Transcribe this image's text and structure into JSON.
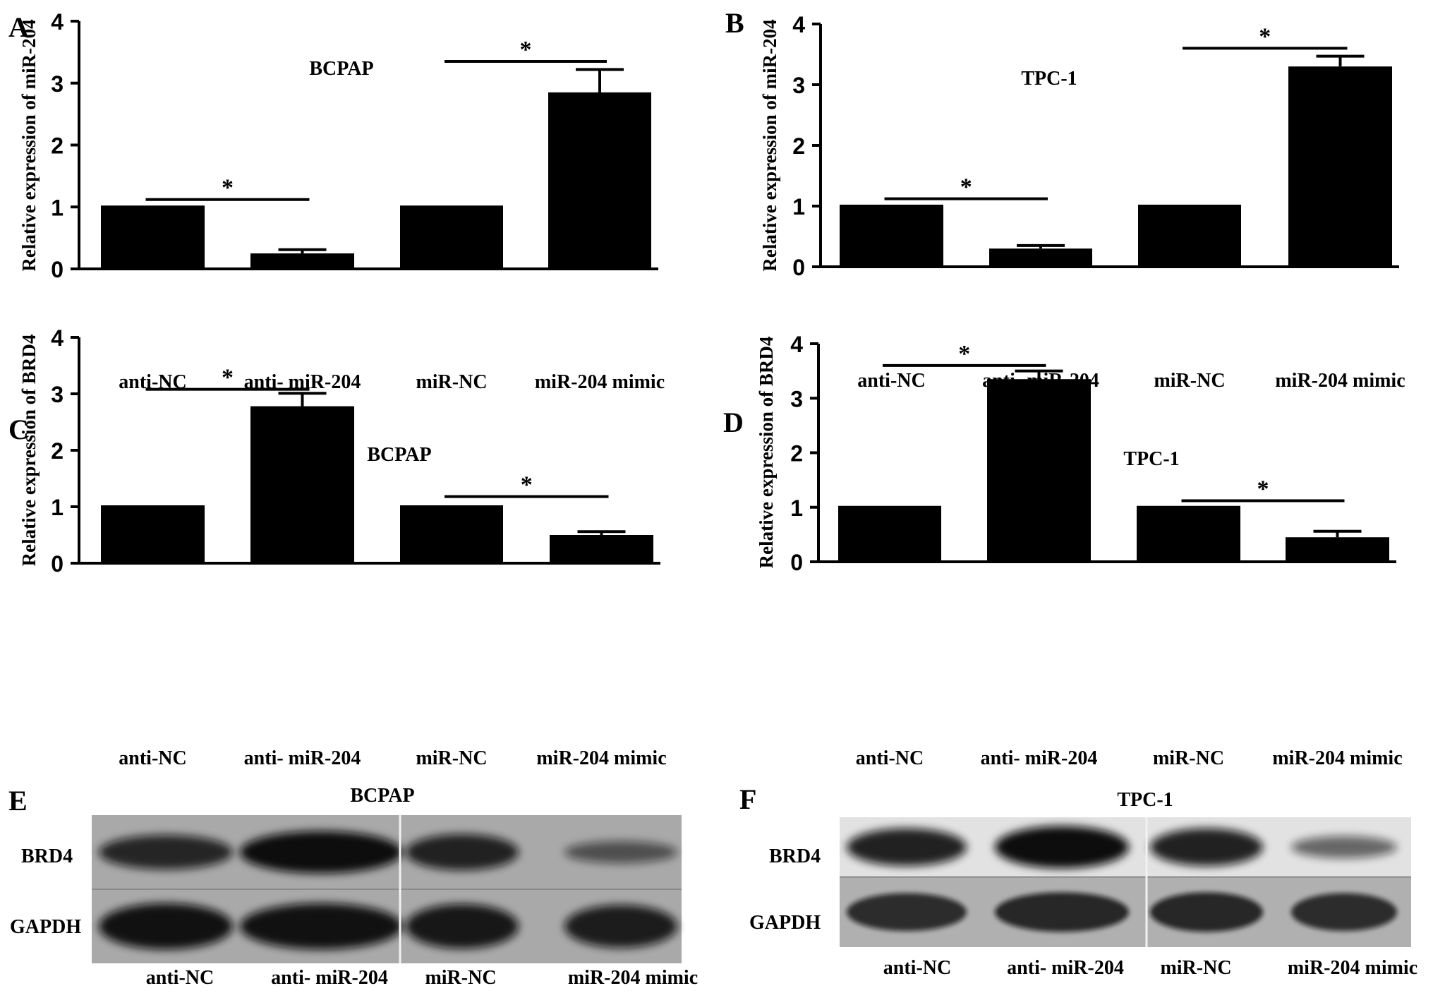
{
  "chart_data": [
    {
      "type": "bar",
      "panel": "A",
      "title": "BCPAP",
      "ylabel": "Relative expression of  miR-204",
      "categories": [
        "anti-NC",
        "anti- miR-204",
        "miR-NC",
        "miR-204 mimic"
      ],
      "values": [
        1.0,
        0.25,
        1.0,
        2.85
      ],
      "errors": [
        0,
        0.06,
        0,
        0.37
      ],
      "ylim": [
        0,
        4
      ],
      "yticks": [
        "0",
        "1",
        "2",
        "3",
        "4"
      ],
      "significance": [
        {
          "from": 0,
          "to": 1,
          "y": 1.12,
          "label": "*"
        },
        {
          "from": 2,
          "to": 3,
          "y": 3.35,
          "label": "*"
        }
      ]
    },
    {
      "type": "bar",
      "panel": "B",
      "title": "TPC-1",
      "ylabel": "Relative expression of  miR-204",
      "categories": [
        "anti-NC",
        "anti- miR-204",
        "miR-NC",
        "miR-204 mimic"
      ],
      "values": [
        1.0,
        0.3,
        1.0,
        3.3
      ],
      "errors": [
        0,
        0.05,
        0,
        0.17
      ],
      "ylim": [
        0,
        4
      ],
      "yticks": [
        "0",
        "1",
        "2",
        "3",
        "4"
      ],
      "significance": [
        {
          "from": 0,
          "to": 1,
          "y": 1.12,
          "label": "*"
        },
        {
          "from": 2,
          "to": 3,
          "y": 3.6,
          "label": "*"
        }
      ]
    },
    {
      "type": "bar",
      "panel": "C",
      "title": "BCPAP",
      "ylabel": "Relative expression of BRD4",
      "categories": [
        "anti-NC",
        "anti- miR-204",
        "miR-NC",
        "miR-204 mimic"
      ],
      "values": [
        1.0,
        2.78,
        1.0,
        0.5
      ],
      "errors": [
        0,
        0.23,
        0,
        0.06
      ],
      "ylim": [
        0,
        4
      ],
      "yticks": [
        "0",
        "1",
        "2",
        "3",
        "4"
      ],
      "significance": [
        {
          "from": 0,
          "to": 1,
          "y": 3.08,
          "label": "*"
        },
        {
          "from": 2,
          "to": 3,
          "y": 1.18,
          "label": "*"
        }
      ]
    },
    {
      "type": "bar",
      "panel": "D",
      "title": "TPC-1",
      "ylabel": "Relative expression of  BRD4",
      "categories": [
        "anti-NC",
        "anti- miR-204",
        "miR-NC",
        "miR-204 mimic"
      ],
      "values": [
        1.0,
        3.35,
        1.0,
        0.45
      ],
      "errors": [
        0,
        0.15,
        0,
        0.11
      ],
      "ylim": [
        0,
        4
      ],
      "yticks": [
        "0",
        "1",
        "2",
        "3",
        "4"
      ],
      "significance": [
        {
          "from": 0,
          "to": 1,
          "y": 3.6,
          "label": "*"
        },
        {
          "from": 2,
          "to": 3,
          "y": 1.12,
          "label": "*"
        }
      ]
    }
  ],
  "blots": [
    {
      "panel": "E",
      "title": "BCPAP",
      "rows": [
        "BRD4",
        "GAPDH"
      ],
      "lanes": [
        "anti-NC",
        "anti- miR-204",
        "miR-NC",
        "miR-204 mimic"
      ],
      "brd4_intensity": [
        0.75,
        1.0,
        0.8,
        0.35
      ],
      "gapdh_intensity": [
        0.95,
        0.95,
        0.9,
        0.85
      ]
    },
    {
      "panel": "F",
      "title": "TPC-1",
      "rows": [
        "BRD4",
        "GAPDH"
      ],
      "lanes": [
        "anti-NC",
        "anti- miR-204",
        "miR-NC",
        "miR-204 mimic"
      ],
      "brd4_intensity": [
        0.85,
        1.0,
        0.85,
        0.35
      ],
      "gapdh_intensity": [
        0.7,
        0.75,
        0.75,
        0.7
      ]
    }
  ],
  "colors": {
    "bar": "#000000",
    "axis": "#000000",
    "blot_background_e": "#a9a9a9",
    "blot_background_f_top": "#e2e2e2",
    "blot_background_f_bottom": "#b0b0b0",
    "band": "#111111"
  }
}
